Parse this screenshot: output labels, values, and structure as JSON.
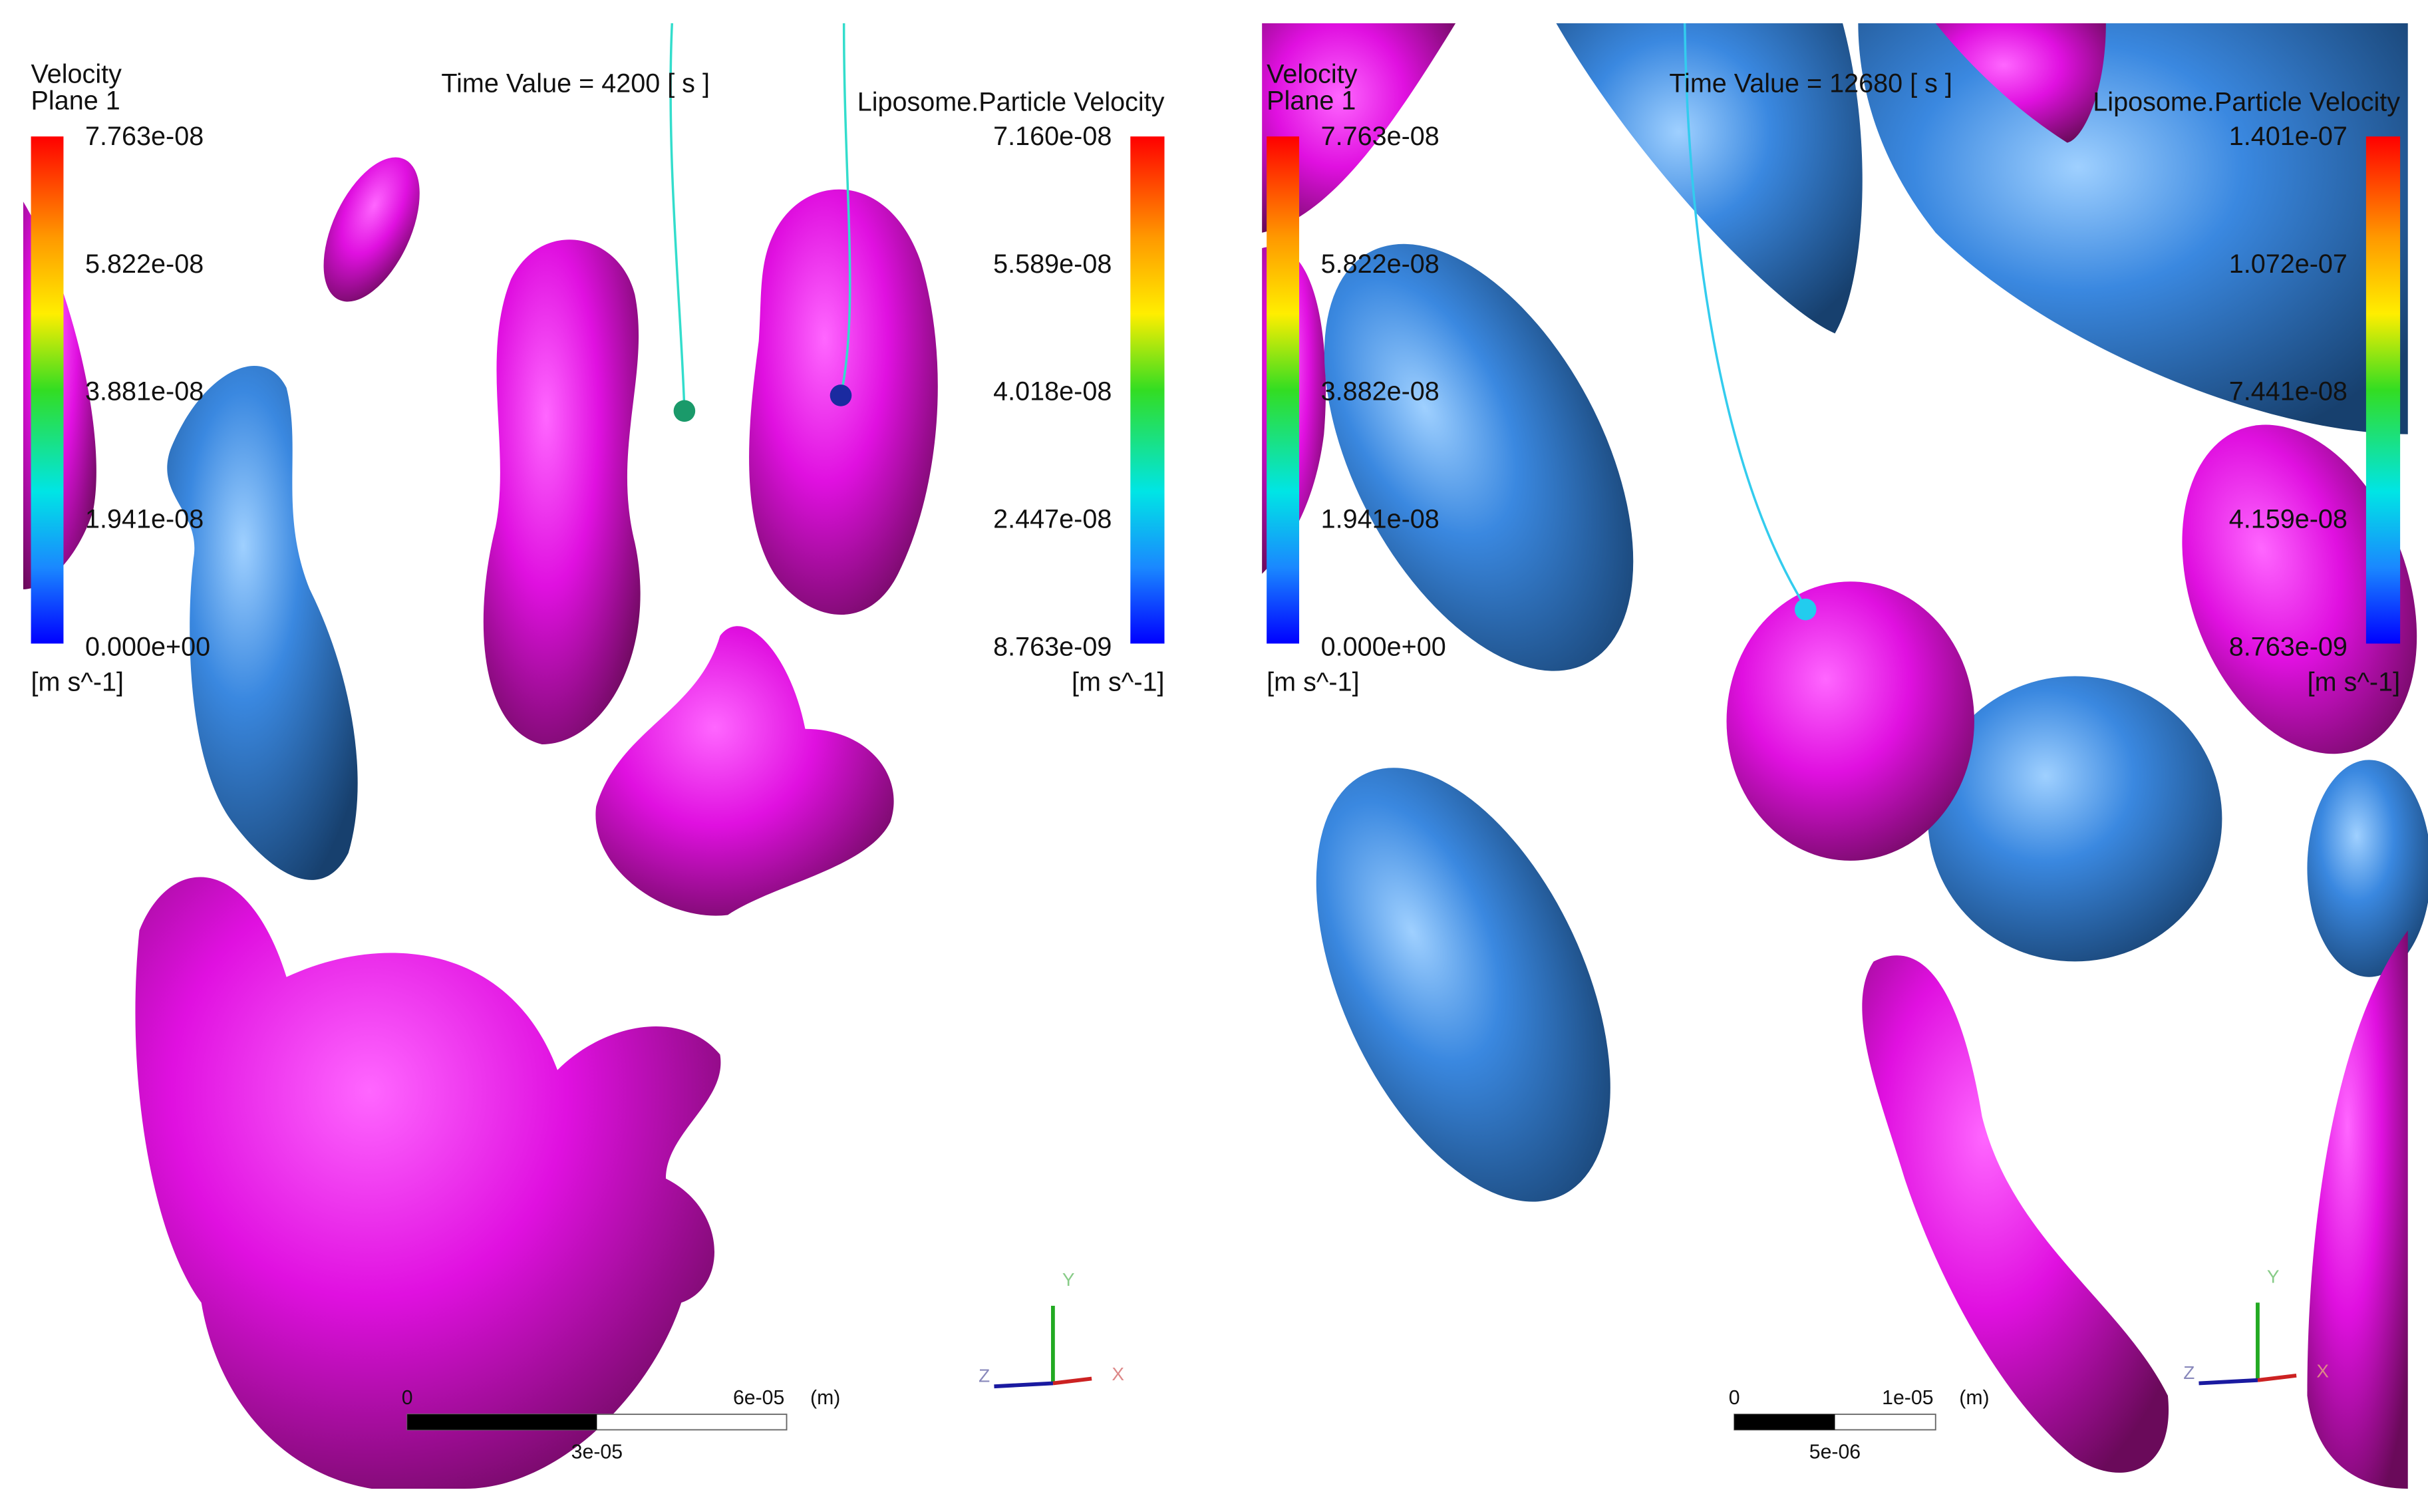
{
  "panels": [
    {
      "velocity_legend": {
        "title": "Velocity",
        "subtitle": "Plane 1",
        "labels": [
          "7.763e-08",
          "5.822e-08",
          "3.881e-08",
          "1.941e-08",
          "0.000e+00"
        ],
        "units": "[m s^-1]"
      },
      "time_value": "Time Value = 4200 [ s ]",
      "particle_legend": {
        "title": "Liposome.Particle Velocity",
        "labels": [
          "7.160e-08",
          "5.589e-08",
          "4.018e-08",
          "2.447e-08",
          "8.763e-09"
        ],
        "units": "[m s^-1]"
      },
      "scale_bar": {
        "start": "0",
        "end": "6e-05",
        "unit": "(m)",
        "mid": "3e-05"
      },
      "axes": {
        "x": "X",
        "y": "Y",
        "z": "Z"
      }
    },
    {
      "velocity_legend": {
        "title": "Velocity",
        "subtitle": "Plane 1",
        "labels": [
          "7.763e-08",
          "5.822e-08",
          "3.882e-08",
          "1.941e-08",
          "0.000e+00"
        ],
        "units": "[m s^-1]"
      },
      "time_value": "Time Value = 12680 [ s ]",
      "particle_legend": {
        "title": "Liposome.Particle Velocity",
        "labels": [
          "1.401e-07",
          "1.072e-07",
          "7.441e-08",
          "4.159e-08",
          "8.763e-09"
        ],
        "units": "[m s^-1]"
      },
      "scale_bar": {
        "start": "0",
        "end": "1e-05",
        "unit": "(m)",
        "mid": "5e-06"
      },
      "axes": {
        "x": "X",
        "y": "Y",
        "z": "Z"
      }
    }
  ]
}
